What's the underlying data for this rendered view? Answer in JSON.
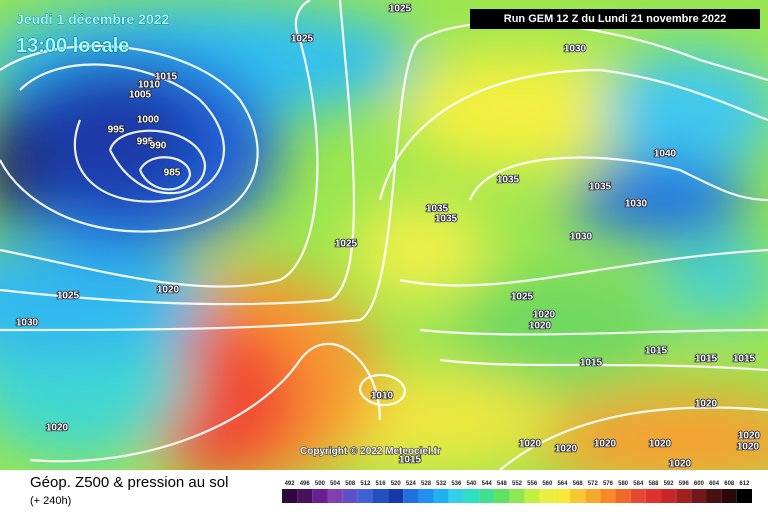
{
  "header": {
    "date": "Jeudi 1 décembre 2022",
    "time": "13:00 locale",
    "run": "Run GEM 12 Z du Lundi 21 novembre 2022"
  },
  "copyright": "Copyright © 2022 Meteociel.fr",
  "footer": {
    "title": "Géop. Z500 & pression au sol",
    "lead": "(+ 240h)"
  },
  "isobar_labels": [
    "1025",
    "1025",
    "1030",
    "1015",
    "1010",
    "1005",
    "1000",
    "995",
    "995",
    "990",
    "985",
    "1040",
    "1035",
    "1035",
    "1030",
    "1035",
    "1035",
    "1030",
    "1025",
    "1025",
    "1020",
    "1025",
    "1020",
    "1020",
    "1030",
    "1015",
    "1015",
    "1015",
    "1015",
    "1010",
    "1020",
    "1020",
    "1020",
    "1020",
    "1020",
    "1020",
    "1020",
    "1020",
    "1020",
    "1015"
  ],
  "legend": {
    "values": [
      492,
      496,
      500,
      504,
      508,
      512,
      516,
      520,
      524,
      528,
      532,
      536,
      540,
      544,
      548,
      552,
      556,
      560,
      564,
      568,
      572,
      576,
      580,
      584,
      588,
      592,
      596,
      600,
      604,
      608,
      612
    ],
    "colors": [
      "#2a0a3a",
      "#4a1060",
      "#6a2090",
      "#8040b0",
      "#6050c8",
      "#4060d8",
      "#2050c0",
      "#1838a8",
      "#2070e0",
      "#2090f0",
      "#20b0f0",
      "#30d0e8",
      "#30e0c0",
      "#40e090",
      "#60e060",
      "#90e850",
      "#c0f040",
      "#e8f040",
      "#f8e838",
      "#f8c830",
      "#f8a828",
      "#f88828",
      "#f06828",
      "#e84830",
      "#e03030",
      "#c82828",
      "#a02020",
      "#701818",
      "#481010",
      "#280808",
      "#000000"
    ]
  }
}
